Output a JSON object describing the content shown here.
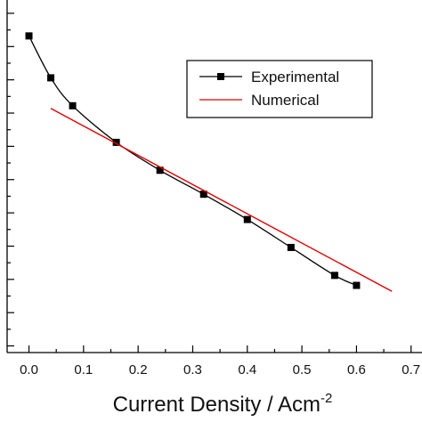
{
  "chart_data": {
    "type": "line",
    "xlabel": "Current Density / Acm",
    "xlabel_superscript": "-2",
    "xlim": [
      -0.04,
      0.72
    ],
    "ylim": [
      0.49,
      1.02
    ],
    "x_ticks": [
      "0.0",
      "0.1",
      "0.2",
      "0.3",
      "0.4",
      "0.5",
      "0.6",
      "0.7"
    ],
    "legend_position": "top-right",
    "series": [
      {
        "name": "Experimental",
        "color": "#000000",
        "marker": "square",
        "x": [
          0.0,
          0.04,
          0.08,
          0.16,
          0.24,
          0.32,
          0.4,
          0.48,
          0.56,
          0.6
        ],
        "y": [
          0.966,
          0.903,
          0.861,
          0.806,
          0.764,
          0.728,
          0.69,
          0.648,
          0.606,
          0.591
        ]
      },
      {
        "name": "Numerical",
        "color": "#e00000",
        "marker": "none",
        "x": [
          0.04,
          0.665
        ],
        "y": [
          0.857,
          0.582
        ]
      }
    ]
  }
}
